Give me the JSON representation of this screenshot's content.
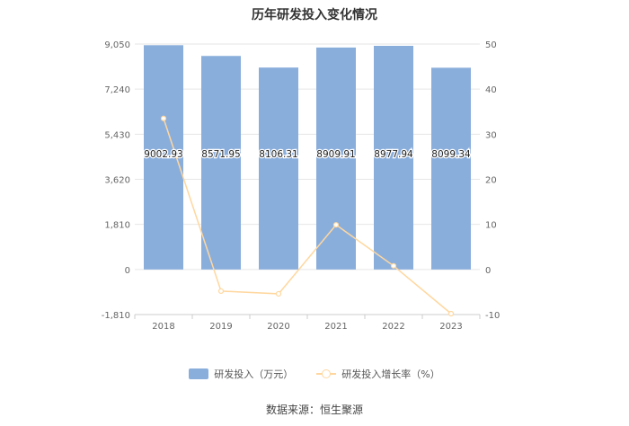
{
  "chart_data": {
    "type": "bar",
    "title": "历年研发投入变化情况",
    "categories": [
      "2018",
      "2019",
      "2020",
      "2021",
      "2022",
      "2023"
    ],
    "series": [
      {
        "name": "研发投入（万元）",
        "type": "bar",
        "axis": "left",
        "values": [
          9002.93,
          8571.95,
          8106.31,
          8909.91,
          8977.94,
          8099.34
        ],
        "labels": [
          "9002.93",
          "8571.95",
          "8106.31",
          "8909.91",
          "8977.94",
          "8099.34"
        ],
        "color": "#8aaedc"
      },
      {
        "name": "研发投入增长率（%）",
        "type": "line",
        "axis": "right",
        "values": [
          33.5,
          -4.8,
          -5.4,
          9.9,
          0.8,
          -9.8
        ],
        "color": "#ffd79e"
      }
    ],
    "y_left": {
      "ticks": [
        -1810,
        0,
        1810,
        3620,
        5430,
        7240,
        9050
      ],
      "tick_labels": [
        "-1,810",
        "0",
        "1,810",
        "3,620",
        "5,430",
        "7,240",
        "9,050"
      ],
      "ylim": [
        -1810,
        9050
      ]
    },
    "y_right": {
      "ticks": [
        -10,
        0,
        10,
        20,
        30,
        40,
        50
      ],
      "tick_labels": [
        "-10",
        "0",
        "10",
        "20",
        "30",
        "40",
        "50"
      ],
      "ylim": [
        -10,
        50
      ]
    },
    "grid": true,
    "legend_position": "bottom"
  },
  "source_text": "数据来源：恒生聚源"
}
